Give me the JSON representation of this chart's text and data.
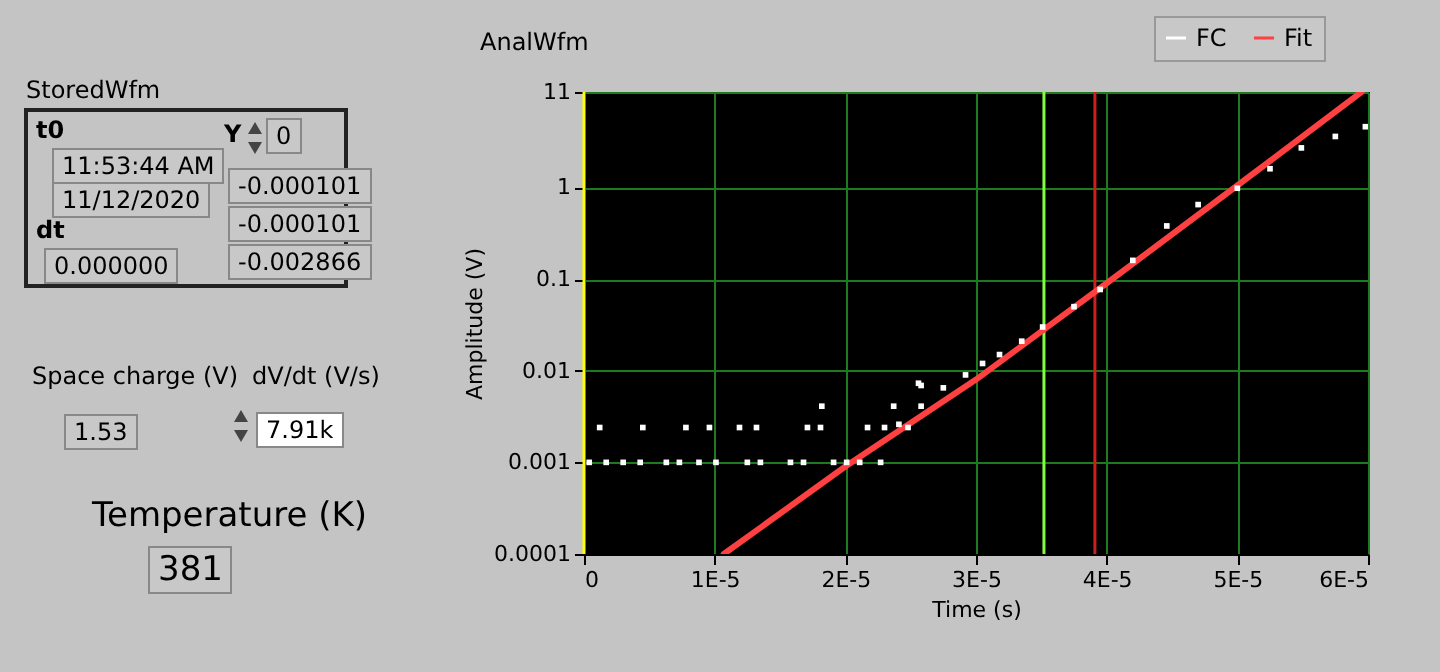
{
  "chart_data": [
    {
      "type": "other",
      "annotations": [
        "StoredWfm",
        "t0",
        "11:53:44 AM",
        "11/12/2020",
        "dt",
        "0.000000",
        "Y",
        "0",
        "-0.000101",
        "-0.000101",
        "-0.002866",
        "Space charge (V)",
        "1.53",
        "dV/dt (V/s)",
        "7.91k",
        "Temperature (K)",
        "381"
      ]
    },
    {
      "type": "scatter",
      "title": "AnalWfm",
      "xlabel": "Time (s)",
      "ylabel": "Amplitude (V)",
      "log": "y",
      "grid": true,
      "legend": "top right",
      "xlim": [
        0,
        6e-05
      ],
      "xticks": [
        {
          "value": 0,
          "label": "0"
        },
        {
          "value": 1e-05,
          "label": "1E-5"
        },
        {
          "value": 2e-05,
          "label": "2E-5"
        },
        {
          "value": 3e-05,
          "label": "3E-5"
        },
        {
          "value": 4e-05,
          "label": "4E-5"
        },
        {
          "value": 5e-05,
          "label": "5E-5"
        },
        {
          "value": 6e-05,
          "label": "6E-5"
        }
      ],
      "ylim": [
        0.0001,
        11
      ],
      "yticks": [
        0.0001,
        0.001,
        0.01,
        0.1,
        1,
        11
      ],
      "series": [
        {
          "name": "FC",
          "color": "#ffffff",
          "x": [
            4e-07,
            1.7e-06,
            3e-06,
            4.3e-06,
            6.3e-06,
            7.3e-06,
            8.8e-06,
            1.01e-05,
            1.25e-05,
            1.35e-05,
            1.58e-05,
            1.68e-05,
            1.91e-05,
            2.01e-05,
            2.11e-05,
            2.27e-05,
            1.2e-06,
            4.5e-06,
            7.8e-06,
            9.6e-06,
            1.19e-05,
            1.32e-05,
            1.71e-05,
            1.81e-05,
            2.17e-05,
            2.3e-05,
            2.48e-05,
            1.82e-05,
            2.37e-05,
            2.58e-05,
            2.58e-05,
            2.41e-05,
            2.56e-05,
            2.75e-05,
            2.92e-05,
            3.05e-05,
            3.18e-05,
            3.35e-05,
            3.51e-05,
            3.75e-05,
            3.95e-05,
            4.2e-05,
            4.46e-05,
            4.7e-05,
            5e-05,
            5.25e-05,
            5.49e-05,
            5.75e-05,
            5.98e-05
          ],
          "values": [
            0.001,
            0.001,
            0.001,
            0.001,
            0.001,
            0.001,
            0.001,
            0.001,
            0.001,
            0.001,
            0.001,
            0.001,
            0.001,
            0.001,
            0.001,
            0.001,
            0.0024,
            0.0024,
            0.0024,
            0.0024,
            0.0024,
            0.0024,
            0.0024,
            0.0024,
            0.0024,
            0.0024,
            0.0024,
            0.0041,
            0.0041,
            0.0041,
            0.0069,
            0.0026,
            0.0073,
            0.0065,
            0.009,
            0.012,
            0.015,
            0.021,
            0.03,
            0.05,
            0.077,
            0.16,
            0.38,
            0.65,
            0.98,
            1.6,
            2.7,
            3.6,
            4.6
          ]
        },
        {
          "name": "Fit",
          "color": "#ff4040",
          "type": "line",
          "x": [
            1.07e-05,
            2e-05,
            3e-05,
            4e-05,
            5e-05,
            5.95e-05
          ],
          "values": [
            0.0001,
            0.0009,
            0.008,
            0.09,
            1.05,
            11
          ]
        }
      ],
      "ref_lines": [
        {
          "axis": "x",
          "value": 0,
          "color": "#ffff00"
        },
        {
          "axis": "x",
          "value": 3.52e-05,
          "color": "#80ff40"
        },
        {
          "axis": "x",
          "value": 3.91e-05,
          "color": "#cc2020"
        }
      ]
    }
  ]
}
